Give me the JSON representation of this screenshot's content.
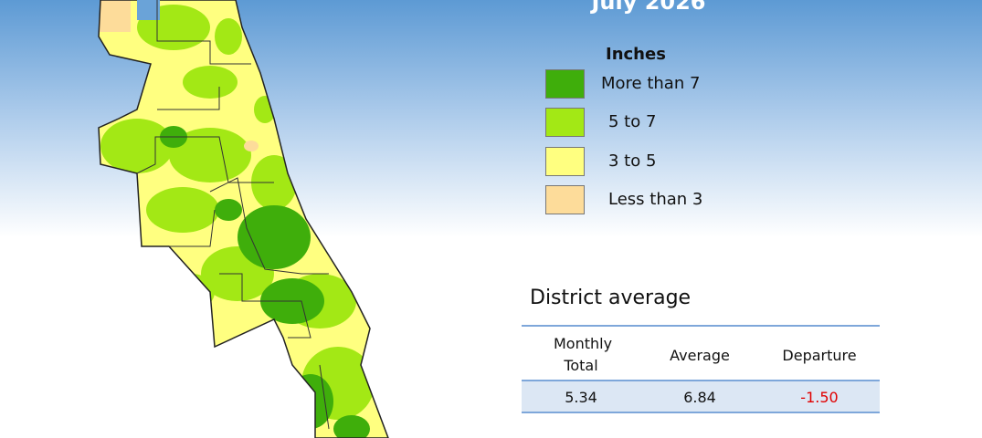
{
  "title": "July 2026",
  "legend": {
    "title": "Inches",
    "items": [
      {
        "label": "More than 7",
        "color": "#3fae0b"
      },
      {
        "label": "5 to 7",
        "color": "#a3e815"
      },
      {
        "label": "3 to 5",
        "color": "#ffff80"
      },
      {
        "label": "Less than 3",
        "color": "#fddc9a"
      }
    ]
  },
  "table": {
    "title": "District average",
    "headers": [
      "Monthly Total",
      "Average",
      "Departure"
    ],
    "rows": [
      [
        "5.34",
        "6.84",
        "-1.50"
      ]
    ]
  }
}
